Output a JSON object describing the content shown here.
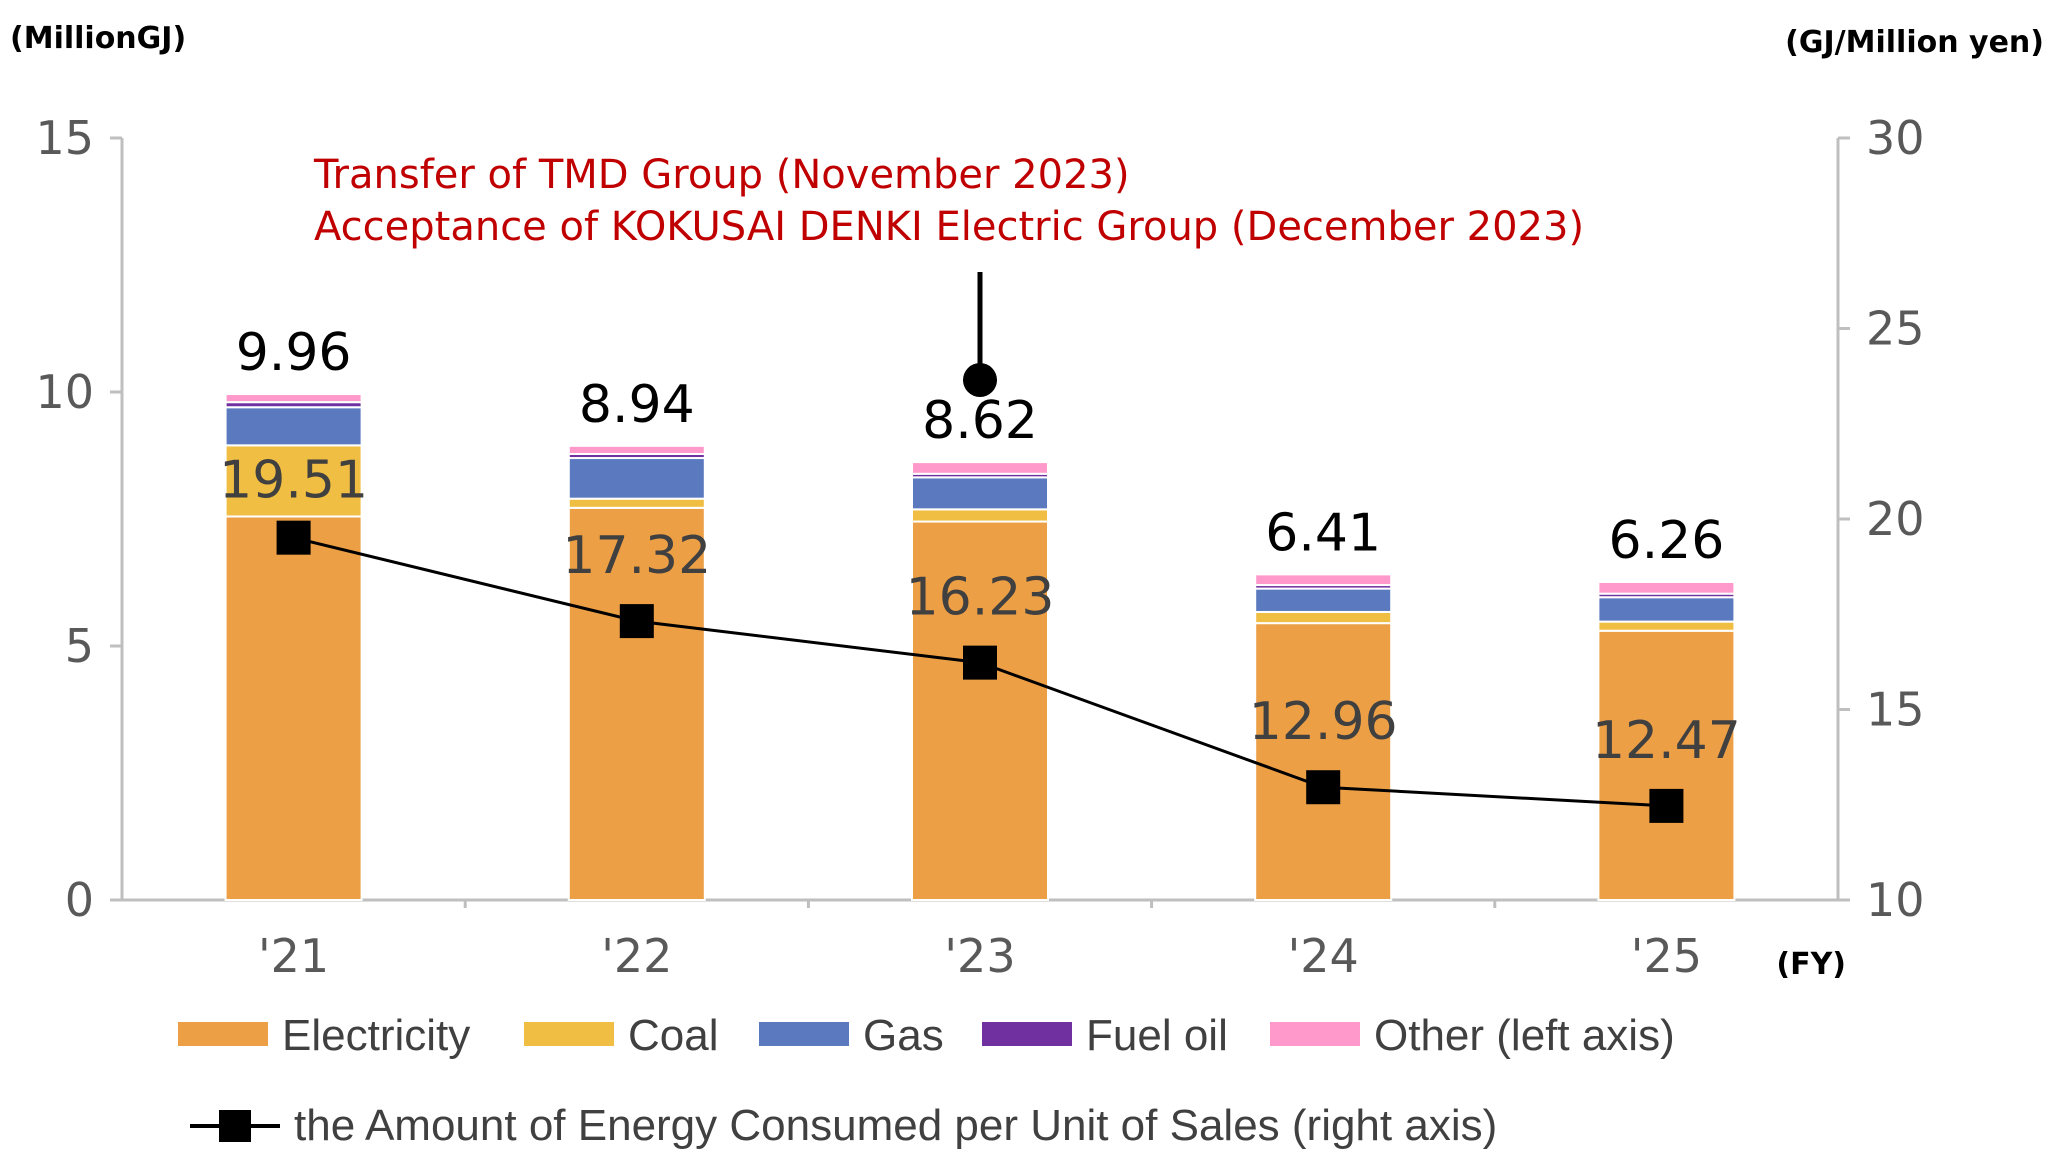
{
  "chart_data": {
    "type": "bar",
    "stacked": true,
    "left_axis": {
      "unit_label": "(MillionGJ)",
      "ylim": [
        0,
        15
      ],
      "ticks": [
        0,
        5,
        10,
        15
      ]
    },
    "right_axis": {
      "unit_label": "(GJ/Million yen)",
      "ylim": [
        10,
        30
      ],
      "ticks": [
        10,
        15,
        20,
        25,
        30
      ]
    },
    "x_unit_label": "(FY)",
    "categories": [
      "'21",
      "'22",
      "'23",
      "'24",
      "'25"
    ],
    "series": [
      {
        "name": "Electricity",
        "color": "#ED9F46",
        "values": [
          7.55,
          7.72,
          7.45,
          5.45,
          5.3
        ]
      },
      {
        "name": "Coal",
        "color": "#F0BE42",
        "values": [
          1.4,
          0.18,
          0.24,
          0.22,
          0.18
        ]
      },
      {
        "name": "Gas",
        "color": "#5B79BE",
        "values": [
          0.75,
          0.8,
          0.63,
          0.46,
          0.48
        ]
      },
      {
        "name": "Fuel oil",
        "color": "#7030A0",
        "values": [
          0.1,
          0.08,
          0.07,
          0.07,
          0.07
        ]
      },
      {
        "name": "Other (left axis)",
        "color": "#FF99CC",
        "values": [
          0.16,
          0.16,
          0.23,
          0.21,
          0.23
        ]
      }
    ],
    "totals": [
      9.96,
      8.94,
      8.62,
      6.41,
      6.26
    ],
    "total_labels": [
      "9.96",
      "8.94",
      "8.62",
      "6.41",
      "6.26"
    ],
    "line_series": {
      "name": "the Amount of Energy Consumed per Unit of Sales (right axis)",
      "axis": "right",
      "values": [
        19.51,
        17.32,
        16.23,
        12.96,
        12.47
      ],
      "labels": [
        "19.51",
        "17.32",
        "16.23",
        "12.96",
        "12.47"
      ],
      "color": "#000000"
    },
    "annotation": {
      "lines": [
        "Transfer of TMD Group (November 2023)",
        "Acceptance of KOKUSAI DENKI Electric Group (December 2023)"
      ],
      "color": "#C00000",
      "category": "'23"
    },
    "grid": false,
    "legend_position": "bottom"
  }
}
